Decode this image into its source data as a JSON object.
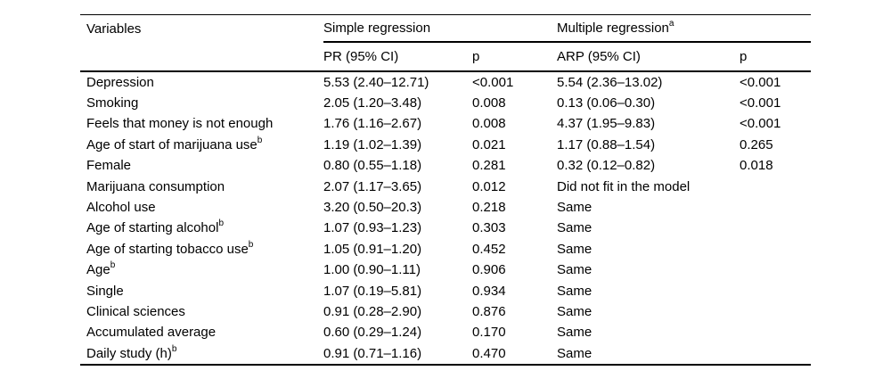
{
  "page": {
    "background_color": "#ffffff",
    "text_color": "#000000"
  },
  "table": {
    "columns": {
      "variables": "Variables",
      "simple_group": {
        "label": "Simple regression",
        "sup": ""
      },
      "multiple_group": {
        "label": "Multiple regression",
        "sup": "a"
      },
      "pr": "PR (95% CI)",
      "p1": "p",
      "arp": "ARP (95% CI)",
      "p2": "p"
    },
    "rows": [
      {
        "variable": "Depression",
        "variable_sup": "",
        "pr": "5.53 (2.40–12.71)",
        "p1": "<0.001",
        "arp": "5.54 (2.36–13.02)",
        "p2": "<0.001"
      },
      {
        "variable": "Smoking",
        "variable_sup": "",
        "pr": "2.05 (1.20–3.48)",
        "p1": "0.008",
        "arp": "0.13 (0.06–0.30)",
        "p2": "<0.001"
      },
      {
        "variable": "Feels that money is not enough",
        "variable_sup": "",
        "pr": "1.76 (1.16–2.67)",
        "p1": "0.008",
        "arp": "4.37 (1.95–9.83)",
        "p2": "<0.001"
      },
      {
        "variable": "Age of start of marijuana use",
        "variable_sup": "b",
        "pr": "1.19 (1.02–1.39)",
        "p1": "0.021",
        "arp": "1.17 (0.88–1.54)",
        "p2": "0.265"
      },
      {
        "variable": "Female",
        "variable_sup": "",
        "pr": "0.80 (0.55–1.18)",
        "p1": "0.281",
        "arp": "0.32 (0.12–0.82)",
        "p2": "0.018"
      },
      {
        "variable": "Marijuana consumption",
        "variable_sup": "",
        "pr": "2.07 (1.17–3.65)",
        "p1": "0.012",
        "arp": "Did not fit in the model",
        "p2": ""
      },
      {
        "variable": "Alcohol use",
        "variable_sup": "",
        "pr": "3.20 (0.50–20.3)",
        "p1": "0.218",
        "arp": "Same",
        "p2": ""
      },
      {
        "variable": "Age of starting alcohol",
        "variable_sup": "b",
        "pr": "1.07 (0.93–1.23)",
        "p1": "0.303",
        "arp": "Same",
        "p2": ""
      },
      {
        "variable": "Age of starting tobacco use",
        "variable_sup": "b",
        "pr": "1.05 (0.91–1.20)",
        "p1": "0.452",
        "arp": "Same",
        "p2": ""
      },
      {
        "variable": "Age",
        "variable_sup": "b",
        "pr": "1.00 (0.90–1.11)",
        "p1": "0.906",
        "arp": "Same",
        "p2": ""
      },
      {
        "variable": "Single",
        "variable_sup": "",
        "pr": "1.07 (0.19–5.81)",
        "p1": "0.934",
        "arp": "Same",
        "p2": ""
      },
      {
        "variable": "Clinical sciences",
        "variable_sup": "",
        "pr": "0.91 (0.28–2.90)",
        "p1": "0.876",
        "arp": "Same",
        "p2": ""
      },
      {
        "variable": "Accumulated average",
        "variable_sup": "",
        "pr": "0.60 (0.29–1.24)",
        "p1": "0.170",
        "arp": "Same",
        "p2": ""
      },
      {
        "variable": "Daily study (h)",
        "variable_sup": "b",
        "pr": "0.91 (0.71–1.16)",
        "p1": "0.470",
        "arp": "Same",
        "p2": ""
      }
    ]
  }
}
